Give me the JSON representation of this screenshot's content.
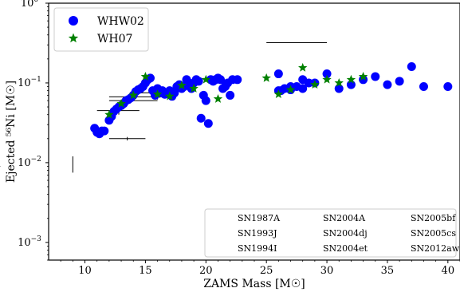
{
  "chart_data": {
    "type": "scatter",
    "title": "",
    "xlabel": "ZAMS Mass [M☉]",
    "ylabel": "Ejected ⁵⁶Ni [M☉]",
    "xlim": [
      7,
      41
    ],
    "ylim": [
      0.0006,
      1.0
    ],
    "yscale": "log",
    "grid": false,
    "legend_placement": "top-left",
    "x_ticks": [
      {
        "value": 10,
        "label": "10"
      },
      {
        "value": 15,
        "label": "15"
      },
      {
        "value": 20,
        "label": "20"
      },
      {
        "value": 25,
        "label": "25"
      },
      {
        "value": 30,
        "label": "30"
      },
      {
        "value": 35,
        "label": "35"
      },
      {
        "value": 40,
        "label": "40"
      }
    ],
    "y_ticks": [
      {
        "value": 0.001,
        "base": "10",
        "exp": "−3"
      },
      {
        "value": 0.01,
        "base": "10",
        "exp": "−2"
      },
      {
        "value": 0.1,
        "base": "10",
        "exp": "−1"
      },
      {
        "value": 1.0,
        "base": "10",
        "exp": "0"
      }
    ],
    "series": [
      {
        "name": "WHW02",
        "marker": "circle",
        "color": "#0000ff",
        "points": [
          [
            10.8,
            0.027
          ],
          [
            11.0,
            0.024
          ],
          [
            11.2,
            0.023
          ],
          [
            11.4,
            0.025
          ],
          [
            11.6,
            0.025
          ],
          [
            12.0,
            0.034
          ],
          [
            12.2,
            0.038
          ],
          [
            12.4,
            0.044
          ],
          [
            12.6,
            0.047
          ],
          [
            12.8,
            0.05
          ],
          [
            13.0,
            0.052
          ],
          [
            13.2,
            0.055
          ],
          [
            13.4,
            0.06
          ],
          [
            13.6,
            0.062
          ],
          [
            13.8,
            0.065
          ],
          [
            14.0,
            0.07
          ],
          [
            14.2,
            0.078
          ],
          [
            14.4,
            0.082
          ],
          [
            14.6,
            0.085
          ],
          [
            14.8,
            0.09
          ],
          [
            15.0,
            0.1
          ],
          [
            15.2,
            0.11
          ],
          [
            15.4,
            0.115
          ],
          [
            15.6,
            0.08
          ],
          [
            15.8,
            0.07
          ],
          [
            16.0,
            0.085
          ],
          [
            16.2,
            0.075
          ],
          [
            16.4,
            0.08
          ],
          [
            16.6,
            0.072
          ],
          [
            16.8,
            0.076
          ],
          [
            17.0,
            0.08
          ],
          [
            17.2,
            0.068
          ],
          [
            17.4,
            0.075
          ],
          [
            17.6,
            0.09
          ],
          [
            17.8,
            0.095
          ],
          [
            18.0,
            0.085
          ],
          [
            18.2,
            0.09
          ],
          [
            18.4,
            0.11
          ],
          [
            18.6,
            0.1
          ],
          [
            18.8,
            0.085
          ],
          [
            19.0,
            0.1
          ],
          [
            19.2,
            0.11
          ],
          [
            19.4,
            0.105
          ],
          [
            19.6,
            0.036
          ],
          [
            19.8,
            0.07
          ],
          [
            20.0,
            0.06
          ],
          [
            20.2,
            0.031
          ],
          [
            20.4,
            0.11
          ],
          [
            20.6,
            0.105
          ],
          [
            20.8,
            0.11
          ],
          [
            21.0,
            0.115
          ],
          [
            21.2,
            0.11
          ],
          [
            21.4,
            0.085
          ],
          [
            21.6,
            0.09
          ],
          [
            21.8,
            0.1
          ],
          [
            22.0,
            0.07
          ],
          [
            22.2,
            0.11
          ],
          [
            22.6,
            0.11
          ],
          [
            26.0,
            0.08
          ],
          [
            26.2,
            0.08
          ],
          [
            26.5,
            0.085
          ],
          [
            27.0,
            0.082
          ],
          [
            27.5,
            0.09
          ],
          [
            28.0,
            0.085
          ],
          [
            28.5,
            0.1
          ],
          [
            29.0,
            0.1
          ],
          [
            30.0,
            0.13
          ],
          [
            31.0,
            0.085
          ],
          [
            32.0,
            0.095
          ],
          [
            33.0,
            0.11
          ],
          [
            34.0,
            0.12
          ],
          [
            35.0,
            0.095
          ],
          [
            36.0,
            0.105
          ],
          [
            37.0,
            0.16
          ],
          [
            38.0,
            0.09
          ],
          [
            40.0,
            0.09
          ],
          [
            26.0,
            0.13
          ],
          [
            27.0,
            0.09
          ],
          [
            28.0,
            0.11
          ]
        ]
      },
      {
        "name": "WH07",
        "marker": "star",
        "color": "#008000",
        "points": [
          [
            12.0,
            0.04
          ],
          [
            13.0,
            0.055
          ],
          [
            14.0,
            0.07
          ],
          [
            15.0,
            0.12
          ],
          [
            16.0,
            0.072
          ],
          [
            17.0,
            0.068
          ],
          [
            18.0,
            0.093
          ],
          [
            19.0,
            0.085
          ],
          [
            20.0,
            0.11
          ],
          [
            21.0,
            0.063
          ],
          [
            25.0,
            0.115
          ],
          [
            26.0,
            0.072
          ],
          [
            27.0,
            0.082
          ],
          [
            28.0,
            0.155
          ],
          [
            29.0,
            0.095
          ],
          [
            30.0,
            0.11
          ],
          [
            31.0,
            0.1
          ],
          [
            32.0,
            0.11
          ],
          [
            33.0,
            0.12
          ]
        ]
      }
    ],
    "error_bars": [
      {
        "x": 9.0,
        "y": 0.009,
        "x_err": [
          1.8,
          3.0
        ],
        "y_err": [
          0.0075,
          0.012
        ]
      },
      {
        "x": 13.5,
        "y": 0.02,
        "x_err": [
          12.0,
          15.0
        ],
        "y_err": [
          0.019,
          0.021
        ]
      },
      {
        "x": 12.8,
        "y": 0.045,
        "x_err": [
          11.0,
          14.5
        ],
        "y_err": [
          0.04,
          0.051
        ]
      },
      {
        "x": 13.5,
        "y": 0.06,
        "x_err": [
          12.0,
          16.0
        ],
        "y_err": [
          0.053,
          0.068
        ]
      },
      {
        "x": 14.0,
        "y": 0.067,
        "x_err": [
          12.0,
          16.5
        ],
        "y_err": [
          0.06,
          0.075
        ]
      },
      {
        "x": 16.0,
        "y": 0.075,
        "x_err": [
          14.5,
          17.5
        ],
        "y_err": [
          0.062,
          0.09
        ]
      },
      {
        "x": 27.5,
        "y": 0.32,
        "x_err": [
          25.0,
          30.0
        ],
        "y_err": [
          0.32,
          0.32
        ]
      }
    ],
    "legend": [
      {
        "label": "WHW02",
        "marker": "circle",
        "color": "#0000ff"
      },
      {
        "label": "WH07",
        "marker": "star",
        "color": "#008000"
      }
    ],
    "sn_labels": [
      [
        "SN1987A",
        "SN2004A",
        "SN2005bf"
      ],
      [
        "SN1993J",
        "SN2004dj",
        "SN2005cs"
      ],
      [
        "SN1994I",
        "SN2004et",
        "SN2012aw"
      ]
    ]
  }
}
